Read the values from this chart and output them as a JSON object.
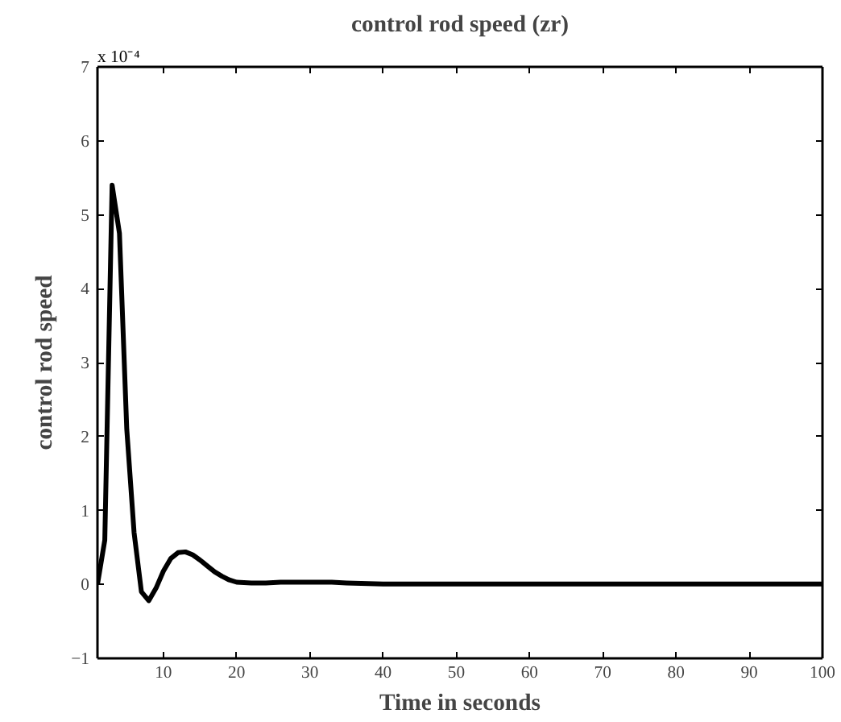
{
  "chart_data": {
    "type": "line",
    "title": "control rod speed (zr)",
    "xlabel": "Time in seconds",
    "ylabel": "control rod speed",
    "annotations": [
      "x 10⁻⁴"
    ],
    "x": [
      1,
      2,
      3,
      4,
      5,
      6,
      7,
      8,
      9,
      10,
      11,
      12,
      13,
      14,
      15,
      16,
      17,
      18,
      19,
      20,
      22,
      24,
      26,
      30,
      33,
      35,
      38,
      40,
      100
    ],
    "series": [
      {
        "color": "#000000",
        "values": [
          0,
          0.6,
          5.4,
          4.75,
          2.1,
          0.7,
          -0.1,
          -0.22,
          -0.05,
          0.18,
          0.35,
          0.43,
          0.44,
          0.4,
          0.33,
          0.25,
          0.17,
          0.11,
          0.06,
          0.03,
          0.02,
          0.02,
          0.03,
          0.03,
          0.03,
          0.02,
          0.01,
          0.005,
          0.005
        ]
      }
    ],
    "xlim": [
      1,
      100
    ],
    "ylim": [
      -1,
      7
    ],
    "xticks": [
      10,
      20,
      30,
      40,
      50,
      60,
      70,
      80,
      90,
      100
    ],
    "yticks": [
      -1,
      0,
      1,
      2,
      3,
      4,
      5,
      6,
      7
    ],
    "grid": false,
    "marker": "none",
    "line_style": "solid"
  }
}
